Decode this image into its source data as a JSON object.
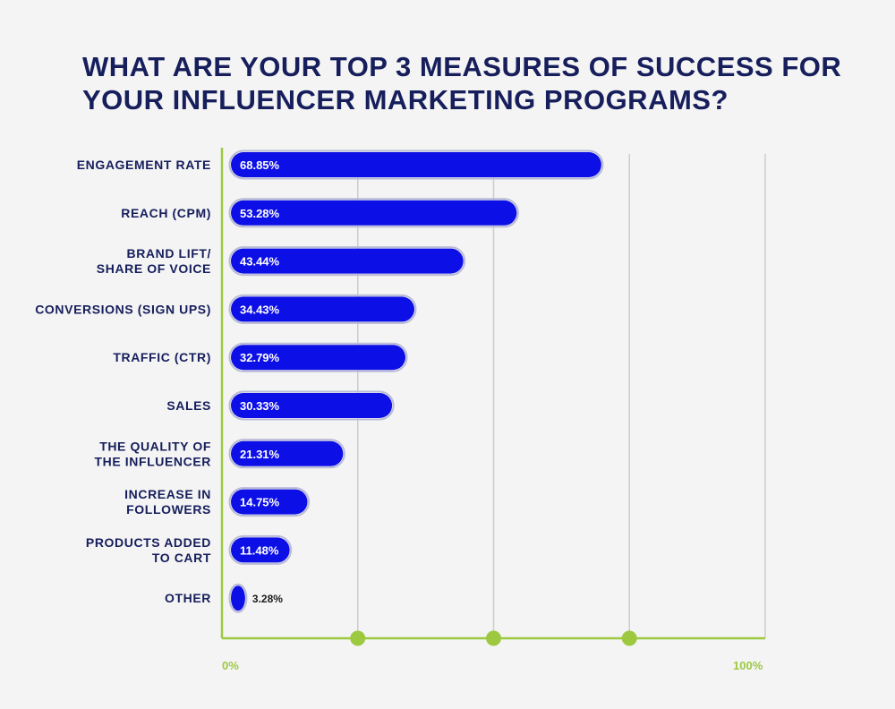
{
  "chart_data": {
    "type": "bar",
    "orientation": "horizontal",
    "title": "WHAT ARE YOUR TOP 3 MEASURES OF SUCCESS FOR YOUR INFLUENCER MARKETING PROGRAMS?",
    "categories": [
      "ENGAGEMENT RATE",
      "REACH (CPM)",
      "BRAND LIFT/\nSHARE OF VOICE",
      "CONVERSIONS (SIGN UPS)",
      "TRAFFIC (CTR)",
      "SALES",
      "THE QUALITY OF\nTHE INFLUENCER",
      "INCREASE IN\nFOLLOWERS",
      "PRODUCTS ADDED\nTO CART",
      "OTHER"
    ],
    "values": [
      68.85,
      53.28,
      43.44,
      34.43,
      32.79,
      30.33,
      21.31,
      14.75,
      11.48,
      3.28
    ],
    "value_labels": [
      "68.85%",
      "53.28%",
      "43.44%",
      "34.43%",
      "32.79%",
      "30.33%",
      "21.31%",
      "14.75%",
      "11.48%",
      "3.28%"
    ],
    "xlim": [
      0,
      100
    ],
    "x_tick_labels": [
      "0%",
      "100%"
    ],
    "grid": true,
    "colors": {
      "bar": "#0c0fe6",
      "bar_outline": "#b9bad6",
      "axis": "#9dc940",
      "grid": "#cccccc",
      "label": "#161e5c"
    }
  }
}
